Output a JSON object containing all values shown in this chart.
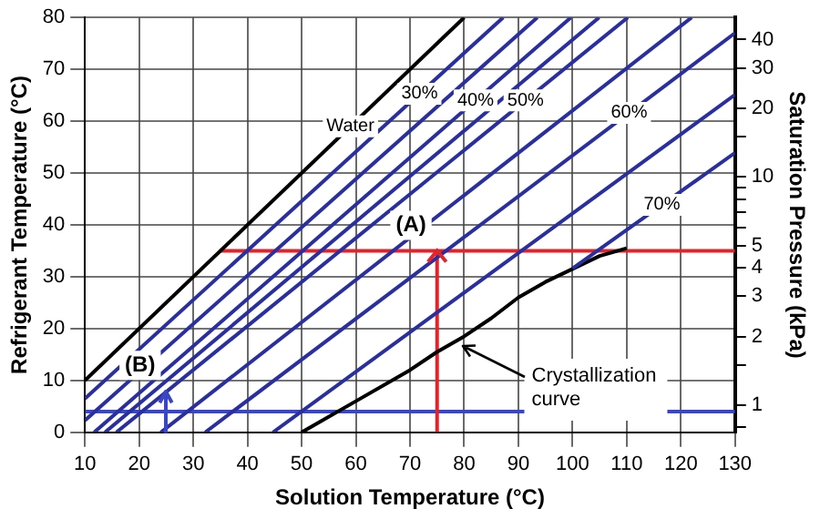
{
  "chart_data": {
    "type": "line",
    "xlabel": "Solution Temperature (°C)",
    "ylabel": "Refrigerant Temperature (°C)",
    "y2label": "Saturation Pressure (kPa)",
    "xlim": [
      10,
      130
    ],
    "xticks": [
      10,
      20,
      30,
      40,
      50,
      60,
      70,
      80,
      90,
      100,
      110,
      120,
      130
    ],
    "ylim": [
      0,
      80
    ],
    "yticks": [
      0,
      10,
      20,
      30,
      40,
      50,
      60,
      70,
      80
    ],
    "y2lim": [
      0.76,
      50
    ],
    "y2ticks": [
      {
        "value": 0.8,
        "label": null
      },
      1,
      {
        "value": 1.5,
        "label": null
      },
      2,
      3,
      4,
      5,
      {
        "value": 6,
        "label": null
      },
      {
        "value": 7,
        "label": null
      },
      {
        "value": 8,
        "label": null
      },
      {
        "value": 9,
        "label": null
      },
      10,
      {
        "value": 15,
        "label": null
      },
      20,
      30,
      40
    ],
    "grid": true,
    "legend": false,
    "log": "y2",
    "series": [
      {
        "name": "Water",
        "color": "#000000",
        "x": [
          10,
          80
        ],
        "values": [
          10,
          80
        ]
      },
      {
        "name": "30%",
        "color": "#2a2fa0",
        "x": [
          10,
          87.2
        ],
        "values": [
          6.5,
          80
        ]
      },
      {
        "color": "#2a2fa0",
        "x": [
          10,
          93.5
        ],
        "values": [
          2.3,
          80
        ]
      },
      {
        "name": "40%",
        "color": "#2a2fa0",
        "x": [
          11.7,
          99.7
        ],
        "values": [
          0,
          80
        ]
      },
      {
        "color": "#2a2fa0",
        "x": [
          13.7,
          104.9
        ],
        "values": [
          0,
          80
        ]
      },
      {
        "name": "50%",
        "color": "#2a2fa0",
        "x": [
          15.8,
          110.2
        ],
        "values": [
          0,
          80
        ]
      },
      {
        "color": "#2a2fa0",
        "x": [
          24,
          122
        ],
        "values": [
          0,
          80
        ]
      },
      {
        "name": "60%",
        "color": "#2a2fa0",
        "x": [
          32.2,
          130
        ],
        "values": [
          0,
          77
        ]
      },
      {
        "color": "#2a2fa0",
        "x": [
          44.7,
          130
        ],
        "values": [
          0,
          65.1
        ]
      },
      {
        "name": "70%",
        "color": "#2a2fa0",
        "x": [
          100,
          130
        ],
        "values": [
          31.6,
          53.9
        ]
      },
      {
        "color": "#000000",
        "x": [
          50,
          60,
          70,
          75,
          80,
          85,
          90,
          95,
          100,
          105,
          110
        ],
        "values": [
          0,
          6,
          12,
          15.5,
          18.5,
          22,
          26,
          29,
          31.5,
          34,
          35.5
        ]
      },
      {
        "color": "#e0242c",
        "x": [
          35,
          130
        ],
        "values": [
          35,
          35
        ]
      },
      {
        "color": "#e0242c",
        "x": [
          75,
          75
        ],
        "values": [
          0,
          35
        ]
      },
      {
        "color": "#3b46c4",
        "x": [
          10,
          130
        ],
        "values": [
          4,
          4
        ]
      }
    ],
    "annotations": [
      {
        "text": "(A)",
        "x": 75,
        "y": 35
      },
      {
        "text": "(B)",
        "x": 25,
        "y": 8
      },
      {
        "text": "Crystallization curve",
        "x": 79,
        "y": 17
      }
    ]
  }
}
